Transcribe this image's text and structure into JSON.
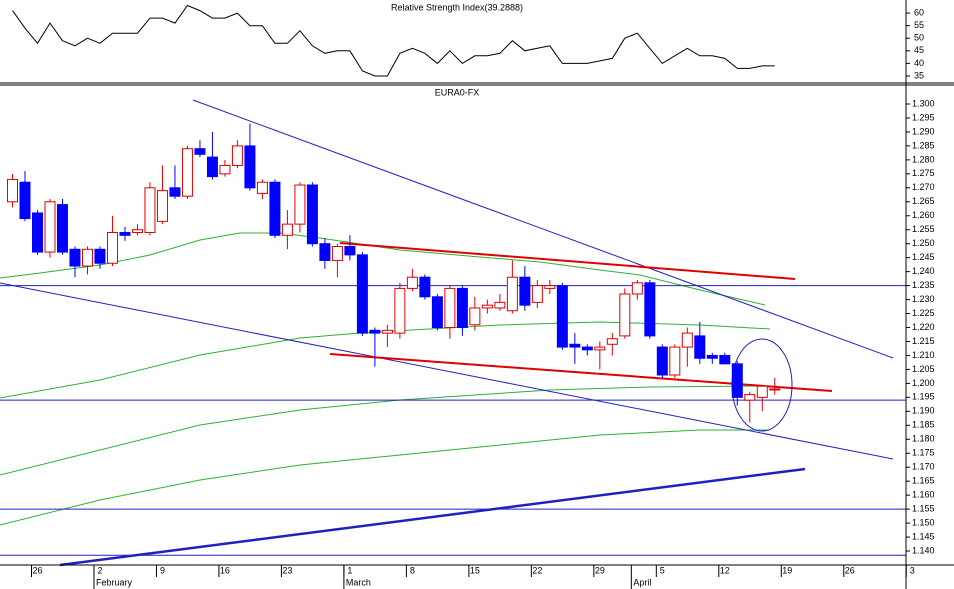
{
  "chart_data": [
    {
      "type": "line",
      "title": "Relative Strength Index(39.2888)",
      "color": "#000000",
      "x": [
        -2,
        -1,
        0,
        1,
        2,
        3,
        4,
        5,
        6,
        7,
        8,
        9,
        10,
        11,
        12,
        13,
        14,
        15,
        16,
        17,
        18,
        19,
        20,
        21,
        22,
        23,
        24,
        25,
        26,
        27,
        28,
        29,
        30,
        31,
        32,
        33,
        34,
        35,
        36,
        37,
        38,
        39,
        40,
        41,
        42,
        43,
        44,
        45,
        46,
        47,
        48,
        49,
        50,
        51,
        52,
        53,
        54,
        55,
        56,
        57,
        58,
        59
      ],
      "values": [
        61,
        54,
        48,
        56,
        49,
        47,
        50,
        48,
        52,
        52,
        52,
        58,
        58,
        56,
        63,
        61,
        58,
        58,
        60,
        55,
        55,
        48,
        48,
        53,
        47,
        44,
        45,
        45,
        37,
        35,
        35,
        44,
        46,
        44,
        40,
        45,
        40,
        43,
        43,
        44,
        49,
        45,
        46,
        47,
        40,
        40,
        40,
        41,
        42,
        50,
        52,
        46,
        40,
        43,
        46,
        43,
        43,
        42,
        38,
        38,
        39,
        39
      ],
      "xlim": [
        -3,
        69.5
      ],
      "ylim": [
        32.6,
        65.2
      ],
      "yticks": [
        35,
        40,
        45,
        50,
        55,
        60
      ]
    },
    {
      "type": "candlestick",
      "title": "EURA0-FX",
      "up_color": "#e00000",
      "down_color": "#0000ff",
      "x": [
        -2,
        -1,
        0,
        1,
        2,
        3,
        4,
        5,
        6,
        7,
        8,
        9,
        10,
        11,
        12,
        13,
        14,
        15,
        16,
        17,
        18,
        19,
        20,
        21,
        22,
        23,
        24,
        25,
        26,
        27,
        28,
        29,
        30,
        31,
        32,
        33,
        34,
        35,
        36,
        37,
        38,
        39,
        40,
        41,
        42,
        43,
        44,
        45,
        46,
        47,
        48,
        49,
        50,
        51,
        52,
        53,
        54,
        55,
        56,
        57,
        58,
        59
      ],
      "open": [
        1.265,
        1.272,
        1.261,
        1.247,
        1.264,
        1.248,
        1.242,
        1.248,
        1.243,
        1.254,
        1.254,
        1.254,
        1.258,
        1.27,
        1.267,
        1.284,
        1.281,
        1.275,
        1.278,
        1.285,
        1.268,
        1.272,
        1.253,
        1.257,
        1.271,
        1.25,
        1.244,
        1.249,
        1.246,
        1.219,
        1.218,
        1.218,
        1.234,
        1.238,
        1.231,
        1.22,
        1.234,
        1.221,
        1.227,
        1.227,
        1.226,
        1.238,
        1.229,
        1.234,
        1.235,
        1.214,
        1.213,
        1.212,
        1.214,
        1.217,
        1.232,
        1.236,
        1.213,
        1.203,
        1.213,
        1.217,
        1.21,
        1.21,
        1.207,
        1.194,
        1.195,
        1.198
      ],
      "high": [
        1.275,
        1.276,
        1.262,
        1.266,
        1.266,
        1.249,
        1.249,
        1.249,
        1.26,
        1.256,
        1.257,
        1.272,
        1.278,
        1.278,
        1.285,
        1.287,
        1.29,
        1.28,
        1.287,
        1.293,
        1.273,
        1.273,
        1.262,
        1.272,
        1.272,
        1.252,
        1.25,
        1.253,
        1.247,
        1.22,
        1.221,
        1.236,
        1.241,
        1.239,
        1.232,
        1.235,
        1.235,
        1.231,
        1.23,
        1.232,
        1.244,
        1.242,
        1.237,
        1.237,
        1.236,
        1.218,
        1.214,
        1.215,
        1.218,
        1.234,
        1.237,
        1.237,
        1.214,
        1.214,
        1.22,
        1.222,
        1.211,
        1.211,
        1.208,
        1.197,
        1.199,
        1.202
      ],
      "low": [
        1.263,
        1.258,
        1.246,
        1.245,
        1.246,
        1.238,
        1.239,
        1.241,
        1.242,
        1.251,
        1.253,
        1.253,
        1.257,
        1.266,
        1.266,
        1.281,
        1.273,
        1.274,
        1.277,
        1.269,
        1.266,
        1.252,
        1.248,
        1.254,
        1.249,
        1.241,
        1.238,
        1.244,
        1.217,
        1.206,
        1.213,
        1.216,
        1.233,
        1.23,
        1.219,
        1.216,
        1.217,
        1.219,
        1.225,
        1.226,
        1.225,
        1.226,
        1.227,
        1.232,
        1.212,
        1.207,
        1.21,
        1.205,
        1.21,
        1.216,
        1.23,
        1.216,
        1.202,
        1.202,
        1.206,
        1.207,
        1.207,
        1.207,
        1.192,
        1.186,
        1.19,
        1.196
      ],
      "close": [
        1.273,
        1.259,
        1.247,
        1.265,
        1.247,
        1.242,
        1.248,
        1.243,
        1.254,
        1.253,
        1.255,
        1.27,
        1.269,
        1.267,
        1.284,
        1.282,
        1.274,
        1.278,
        1.285,
        1.27,
        1.272,
        1.253,
        1.257,
        1.271,
        1.25,
        1.244,
        1.249,
        1.246,
        1.218,
        1.218,
        1.219,
        1.234,
        1.238,
        1.231,
        1.22,
        1.234,
        1.22,
        1.227,
        1.228,
        1.229,
        1.238,
        1.228,
        1.235,
        1.235,
        1.213,
        1.213,
        1.212,
        1.213,
        1.216,
        1.232,
        1.236,
        1.217,
        1.203,
        1.213,
        1.218,
        1.209,
        1.209,
        1.207,
        1.195,
        1.196,
        1.199,
        1.198
      ],
      "hlines": [
        1.235,
        1.194,
        1.155,
        1.1385
      ],
      "xlim": [
        -3,
        69.5
      ],
      "ylim": [
        1.135,
        1.3068
      ],
      "yticks": [
        {
          "value": 1.3,
          "label": "1.300"
        },
        {
          "value": 1.295,
          "label": "1.295"
        },
        {
          "value": 1.29,
          "label": "1.290"
        },
        {
          "value": 1.285,
          "label": "1.285"
        },
        {
          "value": 1.28,
          "label": "1.280"
        },
        {
          "value": 1.275,
          "label": "1.275"
        },
        {
          "value": 1.27,
          "label": "1.270"
        },
        {
          "value": 1.265,
          "label": "1.265"
        },
        {
          "value": 1.26,
          "label": "1.260"
        },
        {
          "value": 1.255,
          "label": "1.255"
        },
        {
          "value": 1.25,
          "label": "1.250"
        },
        {
          "value": 1.245,
          "label": "1.245"
        },
        {
          "value": 1.24,
          "label": "1.240"
        },
        {
          "value": 1.235,
          "label": "1.235"
        },
        {
          "value": 1.23,
          "label": "1.230"
        },
        {
          "value": 1.225,
          "label": "1.225"
        },
        {
          "value": 1.22,
          "label": "1.220"
        },
        {
          "value": 1.215,
          "label": "1.215"
        },
        {
          "value": 1.21,
          "label": "1.210"
        },
        {
          "value": 1.205,
          "label": "1.205"
        },
        {
          "value": 1.2,
          "label": "1.200"
        },
        {
          "value": 1.195,
          "label": "1.195"
        },
        {
          "value": 1.19,
          "label": "1.190"
        },
        {
          "value": 1.185,
          "label": "1.185"
        },
        {
          "value": 1.18,
          "label": "1.180"
        },
        {
          "value": 1.175,
          "label": "1.175"
        },
        {
          "value": 1.17,
          "label": "1.170"
        },
        {
          "value": 1.165,
          "label": "1.165"
        },
        {
          "value": 1.16,
          "label": "1.160"
        },
        {
          "value": 1.155,
          "label": "1.155"
        },
        {
          "value": 1.15,
          "label": "1.150"
        },
        {
          "value": 1.145,
          "label": "1.145"
        },
        {
          "value": 1.14,
          "label": "1.140"
        }
      ],
      "xticks": [
        {
          "value": 0,
          "label": "26"
        },
        {
          "value": 5,
          "label": "2"
        },
        {
          "value": 10,
          "label": "9"
        },
        {
          "value": 15,
          "label": "16"
        },
        {
          "value": 20,
          "label": "23"
        },
        {
          "value": 25,
          "label": "1"
        },
        {
          "value": 30,
          "label": "8"
        },
        {
          "value": 35,
          "label": "15"
        },
        {
          "value": 40,
          "label": "22"
        },
        {
          "value": 45,
          "label": "29"
        },
        {
          "value": 50,
          "label": "5"
        },
        {
          "value": 55,
          "label": "12"
        },
        {
          "value": 60,
          "label": "19"
        },
        {
          "value": 65,
          "label": "26"
        },
        {
          "value": 70,
          "label": "3"
        }
      ],
      "months": [
        {
          "value": 5,
          "label": "February"
        },
        {
          "value": 25,
          "label": "March"
        },
        {
          "value": 48,
          "label": "April"
        }
      ]
    }
  ]
}
